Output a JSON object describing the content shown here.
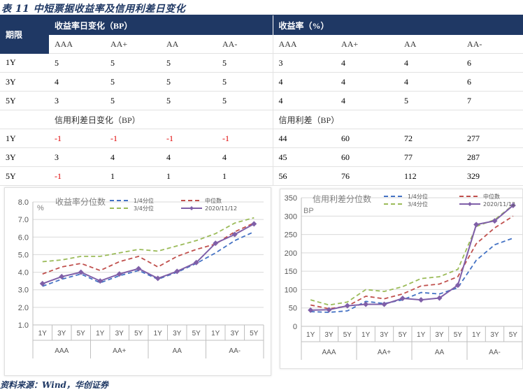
{
  "title": "表 11   中短票据收益率及信用利差日变化",
  "table": {
    "top_header": {
      "phase": "期限",
      "left": "收益率日变化（BP）",
      "right": "收益率（%）"
    },
    "grades": [
      "AAA",
      "AA+",
      "AA",
      "AA-"
    ],
    "rows_top": [
      {
        "term": "1Y",
        "left": [
          "5",
          "5",
          "5",
          "5"
        ],
        "right": [
          "3",
          "4",
          "4",
          "6"
        ]
      },
      {
        "term": "3Y",
        "left": [
          "4",
          "5",
          "5",
          "5"
        ],
        "right": [
          "4",
          "4",
          "4",
          "6"
        ]
      },
      {
        "term": "5Y",
        "left": [
          "3",
          "5",
          "5",
          "5"
        ],
        "right": [
          "4",
          "4",
          "5",
          "7"
        ]
      }
    ],
    "mid_header": {
      "left": "信用利差日变化（BP）",
      "right": "信用利差（BP）"
    },
    "rows_bottom": [
      {
        "term": "1Y",
        "left": [
          "-1",
          "-1",
          "-1",
          "-1"
        ],
        "right": [
          "44",
          "60",
          "72",
          "277"
        ]
      },
      {
        "term": "3Y",
        "left": [
          "3",
          "4",
          "4",
          "4"
        ],
        "right": [
          "45",
          "60",
          "77",
          "287"
        ]
      },
      {
        "term": "5Y",
        "left": [
          "-1",
          "1",
          "1",
          "1"
        ],
        "right": [
          "56",
          "76",
          "112",
          "329"
        ]
      }
    ]
  },
  "colors": {
    "navy": "#1f3864",
    "q1": "#4472c4",
    "median": "#c0504d",
    "q3": "#9bbb59",
    "current": "#7f5fa8",
    "negative": "#e00000"
  },
  "chart_data": [
    {
      "type": "line",
      "title": "收益率分位数",
      "ylabel": "%",
      "ylim": [
        1.0,
        8.0
      ],
      "yticks": [
        "1.0",
        "2.0",
        "3.0",
        "4.0",
        "5.0",
        "6.0",
        "7.0",
        "8.0"
      ],
      "categories": [
        "1Y",
        "3Y",
        "5Y",
        "1Y",
        "3Y",
        "5Y",
        "1Y",
        "3Y",
        "5Y",
        "1Y",
        "3Y",
        "5Y"
      ],
      "groups": [
        "AAA",
        "AA+",
        "AA",
        "AA-"
      ],
      "series": [
        {
          "name": "1/4分位",
          "style": "dash",
          "color": "#4472c4",
          "values": [
            3.2,
            3.6,
            3.9,
            3.4,
            3.8,
            4.1,
            3.6,
            4.0,
            4.5,
            5.1,
            5.8,
            6.3
          ]
        },
        {
          "name": "中位数",
          "style": "dash",
          "color": "#c0504d",
          "values": [
            3.9,
            4.3,
            4.5,
            4.1,
            4.6,
            4.9,
            4.3,
            4.9,
            5.3,
            5.6,
            6.3,
            6.8
          ]
        },
        {
          "name": "3/4分位",
          "style": "dash",
          "color": "#9bbb59",
          "values": [
            4.6,
            4.7,
            4.9,
            4.9,
            5.1,
            5.3,
            5.2,
            5.5,
            5.8,
            6.2,
            6.8,
            7.1
          ]
        },
        {
          "name": "2020/11/12",
          "style": "solid",
          "color": "#7f5fa8",
          "values": [
            3.35,
            3.75,
            4.0,
            3.5,
            3.9,
            4.2,
            3.65,
            4.05,
            4.55,
            5.65,
            6.15,
            6.75
          ]
        }
      ]
    },
    {
      "type": "line",
      "title": "信用利差分位数",
      "ylabel": "BP",
      "ylim": [
        0,
        350
      ],
      "yticks": [
        "0",
        "50",
        "100",
        "150",
        "200",
        "250",
        "300",
        "350"
      ],
      "categories": [
        "1Y",
        "3Y",
        "5Y",
        "1Y",
        "3Y",
        "5Y",
        "1Y",
        "3Y",
        "5Y",
        "1Y",
        "3Y",
        "5Y"
      ],
      "groups": [
        "AAA",
        "AA+",
        "AA",
        "AA-"
      ],
      "series": [
        {
          "name": "1/4分位",
          "style": "dash",
          "color": "#4472c4",
          "values": [
            40,
            38,
            42,
            68,
            62,
            72,
            92,
            88,
            105,
            180,
            222,
            240
          ]
        },
        {
          "name": "中位数",
          "style": "dash",
          "color": "#c0504d",
          "values": [
            58,
            48,
            55,
            82,
            75,
            88,
            110,
            115,
            135,
            225,
            268,
            300
          ]
        },
        {
          "name": "3/4分位",
          "style": "dash",
          "color": "#9bbb59",
          "values": [
            72,
            58,
            66,
            100,
            95,
            108,
            130,
            135,
            155,
            272,
            290,
            330
          ]
        },
        {
          "name": "2020/11/12",
          "style": "solid",
          "color": "#7f5fa8",
          "values": [
            44,
            45,
            56,
            60,
            60,
            76,
            72,
            77,
            112,
            277,
            287,
            329
          ]
        }
      ]
    }
  ],
  "source": "资料来源：Wind，华创证券"
}
